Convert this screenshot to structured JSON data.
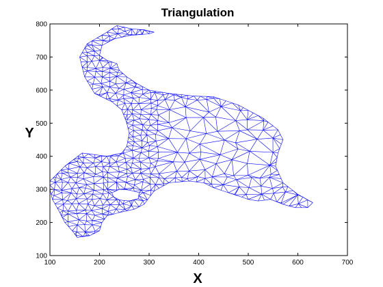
{
  "chart_data": {
    "type": "scatter",
    "plot_style": "triangular mesh (wireframe)",
    "title": "Triangulation",
    "xlabel": "X",
    "ylabel": "Y",
    "xlim": [
      100,
      700
    ],
    "ylim": [
      100,
      800
    ],
    "xticks": [
      100,
      200,
      300,
      400,
      500,
      600,
      700
    ],
    "yticks": [
      100,
      200,
      300,
      400,
      500,
      600,
      700,
      800
    ],
    "grid": false,
    "legend": "none",
    "series": [
      {
        "mesh_color": "#0000ff",
        "outline": [
          [
            100,
            325
          ],
          [
            130,
            370
          ],
          [
            165,
            410
          ],
          [
            215,
            400
          ],
          [
            245,
            410
          ],
          [
            255,
            430
          ],
          [
            260,
            470
          ],
          [
            255,
            500
          ],
          [
            245,
            540
          ],
          [
            225,
            565
          ],
          [
            190,
            590
          ],
          [
            170,
            640
          ],
          [
            160,
            700
          ],
          [
            175,
            740
          ],
          [
            215,
            775
          ],
          [
            235,
            795
          ],
          [
            265,
            785
          ],
          [
            290,
            782
          ],
          [
            310,
            775
          ],
          [
            300,
            770
          ],
          [
            260,
            765
          ],
          [
            230,
            755
          ],
          [
            205,
            735
          ],
          [
            200,
            705
          ],
          [
            215,
            690
          ],
          [
            235,
            680
          ],
          [
            240,
            660
          ],
          [
            255,
            640
          ],
          [
            275,
            620
          ],
          [
            300,
            600
          ],
          [
            340,
            590
          ],
          [
            390,
            582
          ],
          [
            430,
            580
          ],
          [
            480,
            555
          ],
          [
            530,
            515
          ],
          [
            560,
            480
          ],
          [
            570,
            450
          ],
          [
            560,
            410
          ],
          [
            555,
            370
          ],
          [
            570,
            320
          ],
          [
            600,
            285
          ],
          [
            630,
            260
          ],
          [
            620,
            245
          ],
          [
            595,
            245
          ],
          [
            570,
            255
          ],
          [
            545,
            270
          ],
          [
            520,
            265
          ],
          [
            500,
            270
          ],
          [
            460,
            290
          ],
          [
            430,
            305
          ],
          [
            410,
            320
          ],
          [
            380,
            325
          ],
          [
            340,
            320
          ],
          [
            310,
            295
          ],
          [
            290,
            255
          ],
          [
            270,
            240
          ],
          [
            240,
            230
          ],
          [
            215,
            220
          ],
          [
            205,
            200
          ],
          [
            200,
            175
          ],
          [
            180,
            160
          ],
          [
            155,
            155
          ],
          [
            145,
            175
          ],
          [
            130,
            200
          ],
          [
            120,
            230
          ],
          [
            105,
            270
          ],
          [
            100,
            300
          ]
        ],
        "holes": [
          [
            [
              225,
              290
            ],
            [
              240,
              300
            ],
            [
              260,
              298
            ],
            [
              280,
              290
            ],
            [
              278,
              272
            ],
            [
              260,
              265
            ],
            [
              240,
              268
            ],
            [
              228,
              278
            ]
          ],
          [
            [
              255,
              695
            ],
            [
              268,
              690
            ],
            [
              275,
              680
            ],
            [
              262,
              678
            ],
            [
              255,
              685
            ]
          ]
        ]
      }
    ]
  }
}
